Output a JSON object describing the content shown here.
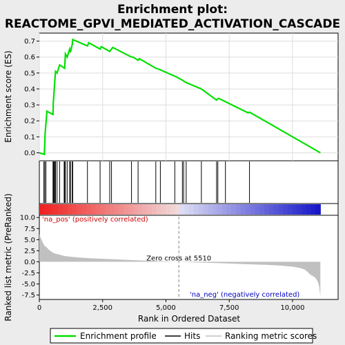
{
  "chart_data": {
    "type": "line",
    "title_lines": [
      "Enrichment plot:",
      "REACTOME_GPVI_MEDIATED_ACTIVATION_CASCADE"
    ],
    "es_panel": {
      "ylabel": "Enrichment score (ES)",
      "ylim": [
        -0.05,
        0.75
      ],
      "yticks": [
        0.0,
        0.1,
        0.2,
        0.3,
        0.4,
        0.5,
        0.6,
        0.7
      ],
      "ytick_labels": [
        "0.0",
        "0.1",
        "0.2",
        "0.3",
        "0.4",
        "0.5",
        "0.6",
        "0.7"
      ],
      "series": [
        {
          "x": [
            0,
            200,
            230,
            300,
            540,
            550,
            580,
            610,
            640,
            700,
            800,
            1000,
            1030,
            1100,
            1200,
            1230,
            1300,
            1320,
            1900,
            1950,
            2400,
            2450,
            2780,
            2850,
            2900,
            3640,
            3700,
            3900,
            3950,
            4600,
            4700,
            4780,
            5350,
            5420,
            5650,
            5700,
            5750,
            5800,
            6400,
            7000,
            7050,
            7100,
            7350,
            8250,
            8300,
            11100
          ],
          "y": [
            0.0,
            -0.01,
            0.12,
            0.26,
            0.24,
            0.31,
            0.38,
            0.45,
            0.51,
            0.5,
            0.55,
            0.53,
            0.62,
            0.6,
            0.65,
            0.63,
            0.68,
            0.71,
            0.67,
            0.69,
            0.65,
            0.665,
            0.635,
            0.65,
            0.66,
            0.6,
            0.6,
            0.58,
            0.59,
            0.53,
            0.525,
            0.52,
            0.48,
            0.475,
            0.455,
            0.45,
            0.445,
            0.44,
            0.4,
            0.33,
            0.34,
            0.34,
            0.32,
            0.25,
            0.255,
            0.0
          ]
        }
      ]
    },
    "hits_panel": {
      "hit_positions": [
        180,
        215,
        260,
        540,
        560,
        580,
        610,
        640,
        700,
        800,
        980,
        1000,
        1030,
        1100,
        1200,
        1230,
        1300,
        1320,
        1900,
        2400,
        2780,
        2850,
        3640,
        3900,
        4600,
        4780,
        5350,
        5650,
        5700,
        5800,
        6400,
        7000,
        7050,
        7350,
        8300
      ]
    },
    "metric_panel": {
      "ylabel": "Ranked list metric (PreRanked)",
      "ylim": [
        -8.5,
        10.5
      ],
      "yticks": [
        10.0,
        7.5,
        5.0,
        2.5,
        0.0,
        -2.5,
        -5.0,
        -7.5
      ],
      "ytick_labels": [
        "10.0",
        "7.5",
        "5.0",
        "2.5",
        "0.0",
        "-2.5",
        "-5.0",
        "-7.5"
      ],
      "profile": {
        "x": [
          0,
          50,
          100,
          150,
          200,
          300,
          400,
          500,
          600,
          800,
          1000,
          1500,
          2000,
          3000,
          4000,
          5000,
          5510,
          6000,
          7000,
          8000,
          9000,
          9500,
          10000,
          10300,
          10500,
          10600,
          10700,
          10800,
          10900,
          11000,
          11050,
          11100
        ],
        "y": [
          6.2,
          5.5,
          4.8,
          4.2,
          3.7,
          3.2,
          2.6,
          2.2,
          1.9,
          1.6,
          1.3,
          1.0,
          0.8,
          0.55,
          0.3,
          0.1,
          0.0,
          -0.1,
          -0.3,
          -0.5,
          -0.7,
          -0.85,
          -1.1,
          -1.4,
          -1.8,
          -2.3,
          -2.9,
          -3.2,
          -3.6,
          -4.5,
          -5.5,
          -7.8
        ]
      },
      "zero_cross_rank": 5510,
      "zero_cross_label": "Zero cross at 5510",
      "pos_label": "'na_pos' (positively correlated)",
      "neg_label": "'na_neg' (negatively correlated)"
    },
    "x_axis": {
      "xlabel": "Rank in Ordered Dataset",
      "xlim": [
        0,
        11800
      ],
      "xticks": [
        0,
        2500,
        5000,
        7500,
        10000
      ],
      "xtick_labels": [
        "0",
        "2,500",
        "5,000",
        "7,500",
        "10,000"
      ]
    },
    "legend": {
      "placement": "bottom",
      "entries": [
        {
          "label": "Enrichment profile",
          "color": "#00e000"
        },
        {
          "label": "Hits",
          "color": "#000000"
        },
        {
          "label": "Ranking metric scores",
          "color": "#c0c0c0"
        }
      ]
    },
    "colors": {
      "es_line": "#00e000",
      "hits": "#000000",
      "metric_fill": "#c0c0c0",
      "zero_line": "#808080",
      "pos_text": "#d00000",
      "neg_text": "#0000c0"
    }
  }
}
